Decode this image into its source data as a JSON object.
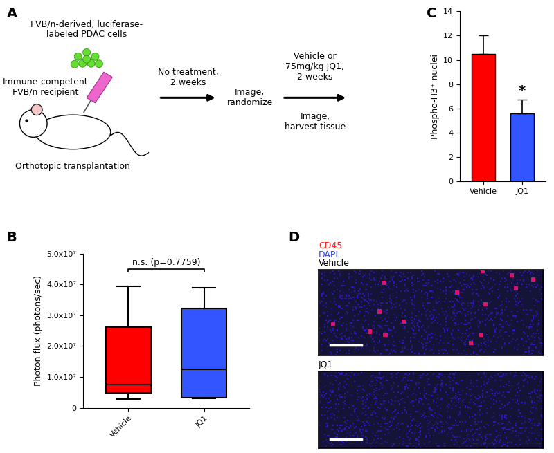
{
  "panel_labels": [
    "A",
    "B",
    "C",
    "D"
  ],
  "schematic": {
    "cells": "FVB/n-derived, luciferase-\nlabeled PDAC cells",
    "recipient": "Immune-competent\nFVB/n recipient",
    "procedure": "Orthotopic transplantation",
    "step1": "No treatment,\n2 weeks",
    "step2": "Image,\nrandomize",
    "step3": "Vehicle or\n75mg/kg JQ1,\n2 weeks",
    "step4": "Image,\nharvest tissue"
  },
  "chart_data": [
    {
      "type": "box",
      "categories": [
        "Vehicle",
        "JQ1"
      ],
      "colors": [
        "#ff0000",
        "#3355ff"
      ],
      "ylabel": "Photon flux (photons/sec)",
      "stats": [
        {
          "min": 2800000,
          "q1": 4800000,
          "median": 7500000,
          "q3": 26200000,
          "max": 39500000
        },
        {
          "min": 3000000,
          "q1": 3300000,
          "median": 12500000,
          "q3": 32200000,
          "max": 39000000
        }
      ],
      "ylim": [
        0,
        50000000
      ],
      "yticks": [
        0,
        {
          "value": 10000000,
          "label": "1.0x10⁷"
        },
        {
          "value": 20000000,
          "label": "2.0x10⁷"
        },
        {
          "value": 30000000,
          "label": "3.0x10⁷"
        },
        {
          "value": 40000000,
          "label": "4.0x10⁷"
        },
        {
          "value": 50000000,
          "label": "5.0x10⁷"
        }
      ],
      "annotations": [
        "n.s. (p=0.7759)"
      ]
    },
    {
      "type": "bar",
      "categories": [
        "Vehicle",
        "JQ1"
      ],
      "values": [
        10.5,
        5.6
      ],
      "errors": [
        1.5,
        1.1
      ],
      "colors": [
        "#ff0000",
        "#3355ff"
      ],
      "ylabel": "Phospho-H3⁺ nuclei",
      "ylim": [
        0,
        14
      ],
      "yticks": [
        0,
        2,
        4,
        6,
        8,
        10,
        12,
        14
      ],
      "annotations": [
        {
          "text": "*",
          "category": "JQ1"
        }
      ]
    }
  ],
  "micrographs": {
    "stains": [
      {
        "text": "CD45",
        "color": "#ff2020"
      },
      {
        "text": "DAPI",
        "color": "#3040ff"
      }
    ],
    "panels": [
      "Vehicle",
      "JQ1"
    ]
  }
}
